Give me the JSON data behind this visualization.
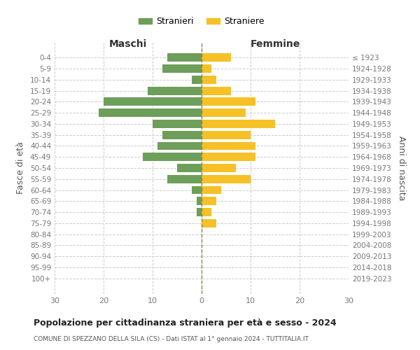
{
  "age_groups": [
    "0-4",
    "5-9",
    "10-14",
    "15-19",
    "20-24",
    "25-29",
    "30-34",
    "35-39",
    "40-44",
    "45-49",
    "50-54",
    "55-59",
    "60-64",
    "65-69",
    "70-74",
    "75-79",
    "80-84",
    "85-89",
    "90-94",
    "95-99",
    "100+"
  ],
  "birth_years": [
    "2019-2023",
    "2014-2018",
    "2009-2013",
    "2004-2008",
    "1999-2003",
    "1994-1998",
    "1989-1993",
    "1984-1988",
    "1979-1983",
    "1974-1978",
    "1969-1973",
    "1964-1968",
    "1959-1963",
    "1954-1958",
    "1949-1953",
    "1944-1948",
    "1939-1943",
    "1934-1938",
    "1929-1933",
    "1924-1928",
    "≤ 1923"
  ],
  "males": [
    7,
    8,
    2,
    11,
    20,
    21,
    10,
    8,
    9,
    12,
    5,
    7,
    2,
    1,
    1,
    0,
    0,
    0,
    0,
    0,
    0
  ],
  "females": [
    6,
    2,
    3,
    6,
    11,
    9,
    15,
    10,
    11,
    11,
    7,
    10,
    4,
    3,
    2,
    3,
    0,
    0,
    0,
    0,
    0
  ],
  "male_color": "#6d9e5a",
  "female_color": "#f5c127",
  "title": "Popolazione per cittadinanza straniera per età e sesso - 2024",
  "subtitle": "COMUNE DI SPEZZANO DELLA SILA (CS) - Dati ISTAT al 1° gennaio 2024 - TUTTITALIA.IT",
  "legend_male": "Stranieri",
  "legend_female": "Straniere",
  "xlabel_left": "Maschi",
  "xlabel_right": "Femmine",
  "ylabel_left": "Fasce di età",
  "ylabel_right": "Anni di nascita",
  "xlim": 30,
  "bg_color": "#ffffff",
  "grid_color": "#cccccc",
  "axis_label_color": "#555555",
  "tick_label_color": "#777777"
}
